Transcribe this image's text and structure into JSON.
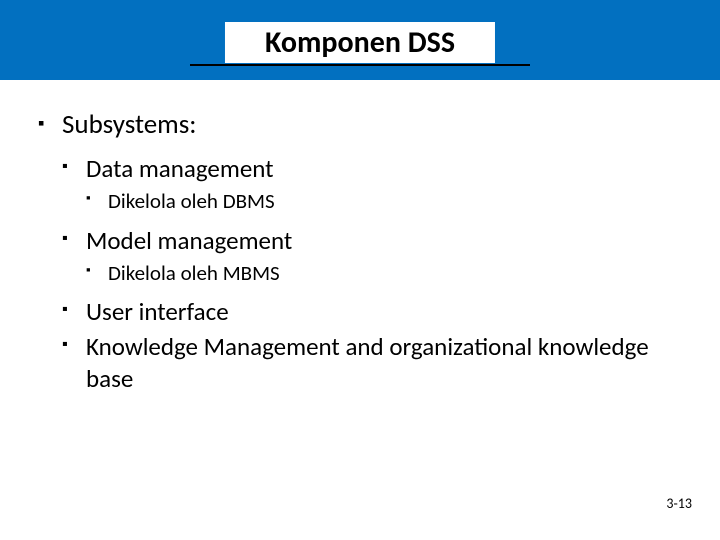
{
  "colors": {
    "header_band": "#0270c0",
    "background": "#ffffff",
    "text": "#000000",
    "underline": "#000000"
  },
  "typography": {
    "title_fontsize": 30,
    "lvl1_fontsize": 27,
    "lvl2_fontsize": 25,
    "lvl3_fontsize": 21,
    "pagenum_fontsize": 14,
    "font_family": "Calibri"
  },
  "title": "Komponen DSS",
  "bullets": {
    "subsystems_label": "Subsystems:",
    "items": {
      "data_mgmt": "Data management",
      "data_mgmt_sub": "Dikelola oleh  DBMS",
      "model_mgmt": "Model management",
      "model_mgmt_sub": "Dikelola oleh MBMS",
      "user_interface": "User interface",
      "knowledge_mgmt": "Knowledge Management and organizational knowledge base"
    }
  },
  "page_number": "3-13"
}
